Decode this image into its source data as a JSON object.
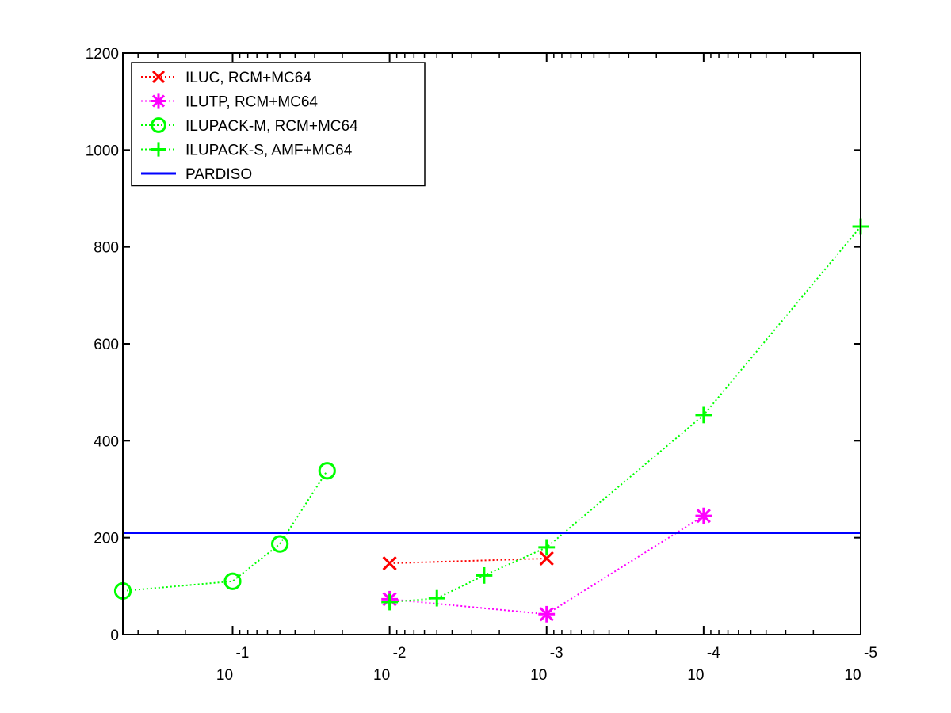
{
  "chart_data": {
    "type": "line",
    "title": "",
    "xlabel": "",
    "ylabel": "",
    "x_scale": "log",
    "x_reversed": true,
    "xlim": [
      0.5,
      1e-05
    ],
    "ylim": [
      0,
      1200
    ],
    "grid": false,
    "legend_position": "top-left",
    "x_ticks": [
      {
        "value": 0.1,
        "base": "10",
        "exp": "-1"
      },
      {
        "value": 0.01,
        "base": "10",
        "exp": "-2"
      },
      {
        "value": 0.001,
        "base": "10",
        "exp": "-3"
      },
      {
        "value": 0.0001,
        "base": "10",
        "exp": "-4"
      },
      {
        "value": 1e-05,
        "base": "10",
        "exp": "-5"
      }
    ],
    "y_ticks": [
      {
        "value": 0,
        "label": "0"
      },
      {
        "value": 200,
        "label": "200"
      },
      {
        "value": 400,
        "label": "400"
      },
      {
        "value": 600,
        "label": "600"
      },
      {
        "value": 800,
        "label": "800"
      },
      {
        "value": 1000,
        "label": "1000"
      },
      {
        "value": 1200,
        "label": "1200"
      }
    ],
    "series": [
      {
        "name": "ILUC, RCM+MC64",
        "color": "#ff0000",
        "marker": "x",
        "line": "dotted",
        "points": [
          [
            0.01,
            147
          ],
          [
            0.001,
            157
          ]
        ]
      },
      {
        "name": "ILUTP, RCM+MC64",
        "color": "#ff00ff",
        "marker": "asterisk",
        "line": "dotted",
        "points": [
          [
            0.01,
            73
          ],
          [
            0.001,
            42
          ],
          [
            0.0001,
            245
          ]
        ]
      },
      {
        "name": "ILUPACK-M, RCM+MC64",
        "color": "#00ff00",
        "marker": "circle",
        "line": "dotted",
        "points": [
          [
            0.5,
            90
          ],
          [
            0.1,
            110
          ],
          [
            0.05,
            187
          ],
          [
            0.025,
            338
          ]
        ]
      },
      {
        "name": "ILUPACK-S, AMF+MC64",
        "color": "#00ff00",
        "marker": "plus",
        "line": "dotted",
        "points": [
          [
            0.01,
            67
          ],
          [
            0.005,
            75
          ],
          [
            0.0025,
            122
          ],
          [
            0.001,
            180
          ],
          [
            0.0001,
            453
          ],
          [
            1e-05,
            842
          ]
        ]
      },
      {
        "name": "PARDISO",
        "color": "#0000ff",
        "marker": "none",
        "line": "solid",
        "points": [
          [
            0.5,
            210
          ],
          [
            1e-05,
            210
          ]
        ]
      }
    ]
  }
}
